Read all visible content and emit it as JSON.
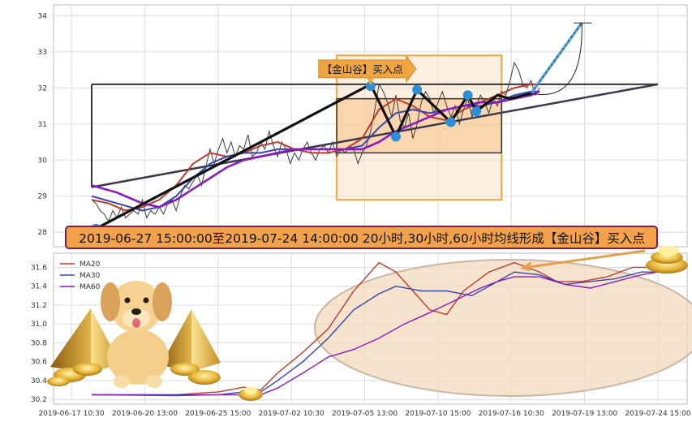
{
  "chart_data": [
    {
      "type": "line",
      "panel": "price",
      "ylim": [
        27.6,
        34.3
      ],
      "yticks": [
        "28",
        "29",
        "30",
        "31",
        "32",
        "33",
        "34"
      ],
      "grid": true,
      "price_series": [
        [
          0,
          28.9
        ],
        [
          1,
          28.8
        ],
        [
          2,
          28.6
        ],
        [
          3,
          28.5
        ],
        [
          4,
          28.3
        ],
        [
          5,
          28.6
        ],
        [
          6,
          28.4
        ],
        [
          7,
          28.7
        ],
        [
          8,
          28.4
        ],
        [
          9,
          28.5
        ],
        [
          10,
          28.6
        ],
        [
          11,
          28.5
        ],
        [
          12,
          28.9
        ],
        [
          13,
          28.4
        ],
        [
          14,
          28.6
        ],
        [
          15,
          28.5
        ],
        [
          16,
          28.7
        ],
        [
          17,
          28.5
        ],
        [
          18,
          28.8
        ],
        [
          19,
          28.9
        ],
        [
          20,
          28.6
        ],
        [
          21,
          29.0
        ],
        [
          22,
          29.3
        ],
        [
          23,
          29.2
        ],
        [
          24,
          29.4
        ],
        [
          25,
          29.6
        ],
        [
          26,
          29.3
        ],
        [
          27,
          29.8
        ],
        [
          28,
          30.3
        ],
        [
          29,
          29.9
        ],
        [
          30,
          30.3
        ],
        [
          31,
          30.6
        ],
        [
          32,
          30.2
        ],
        [
          33,
          30.5
        ],
        [
          34,
          30.1
        ],
        [
          35,
          30.4
        ],
        [
          36,
          30.3
        ],
        [
          37,
          30.7
        ],
        [
          38,
          30.1
        ],
        [
          39,
          30.2
        ],
        [
          40,
          30.5
        ],
        [
          41,
          30.3
        ],
        [
          42,
          30.8
        ],
        [
          43,
          30.4
        ],
        [
          44,
          30.1
        ],
        [
          45,
          30.5
        ],
        [
          46,
          30.3
        ],
        [
          47,
          29.9
        ],
        [
          48,
          30.2
        ],
        [
          49,
          30.0
        ],
        [
          50,
          30.3
        ],
        [
          51,
          30.5
        ],
        [
          52,
          30.2
        ],
        [
          53,
          30.0
        ],
        [
          54,
          30.3
        ],
        [
          55,
          30.4
        ],
        [
          56,
          30.2
        ],
        [
          57,
          30.5
        ],
        [
          58,
          30.1
        ],
        [
          59,
          30.3
        ],
        [
          60,
          30.2
        ],
        [
          61,
          30.4
        ],
        [
          62,
          30.3
        ],
        [
          63,
          29.9
        ],
        [
          64,
          30.2
        ],
        [
          65,
          30.4
        ],
        [
          66,
          30.8
        ],
        [
          67,
          31.4
        ],
        [
          68,
          32.1
        ],
        [
          69,
          31.9
        ],
        [
          70,
          31.6
        ],
        [
          71,
          31.2
        ],
        [
          72,
          31.8
        ],
        [
          73,
          31.1
        ],
        [
          74,
          30.9
        ],
        [
          75,
          31.3
        ],
        [
          76,
          30.6
        ],
        [
          77,
          31.0
        ],
        [
          78,
          31.6
        ],
        [
          79,
          31.9
        ],
        [
          80,
          31.7
        ],
        [
          81,
          31.3
        ],
        [
          82,
          31.6
        ],
        [
          83,
          31.9
        ],
        [
          84,
          31.5
        ],
        [
          85,
          31.2
        ],
        [
          86,
          31.5
        ],
        [
          87,
          31.0
        ],
        [
          88,
          31.4
        ],
        [
          89,
          31.7
        ],
        [
          90,
          31.2
        ],
        [
          91,
          31.5
        ],
        [
          92,
          31.8
        ],
        [
          93,
          31.6
        ],
        [
          94,
          31.3
        ],
        [
          95,
          31.7
        ],
        [
          96,
          31.5
        ],
        [
          97,
          31.9
        ],
        [
          98,
          31.8
        ],
        [
          99,
          32.2
        ],
        [
          100,
          32.7
        ],
        [
          101,
          32.5
        ],
        [
          102,
          32.1
        ],
        [
          103,
          32.0
        ],
        [
          104,
          32.2
        ],
        [
          105,
          31.8
        ],
        [
          106,
          32.0
        ]
      ],
      "series": [
        {
          "name": "MA20",
          "color": "#c0392b",
          "values": [
            [
              0,
              28.9
            ],
            [
              4,
              28.8
            ],
            [
              8,
              28.6
            ],
            [
              12,
              28.7
            ],
            [
              16,
              28.9
            ],
            [
              20,
              29.3
            ],
            [
              24,
              29.9
            ],
            [
              28,
              30.2
            ],
            [
              32,
              30.1
            ],
            [
              36,
              30.2
            ],
            [
              40,
              30.4
            ],
            [
              44,
              30.5
            ],
            [
              48,
              30.3
            ],
            [
              52,
              30.2
            ],
            [
              56,
              30.2
            ],
            [
              60,
              30.3
            ],
            [
              64,
              30.6
            ],
            [
              68,
              31.4
            ],
            [
              72,
              31.7
            ],
            [
              76,
              31.5
            ],
            [
              80,
              31.2
            ],
            [
              84,
              31.1
            ],
            [
              88,
              31.4
            ],
            [
              92,
              31.6
            ],
            [
              96,
              31.8
            ],
            [
              100,
              32.0
            ],
            [
              104,
              32.1
            ],
            [
              106,
              32.1
            ]
          ]
        },
        {
          "name": "MA30",
          "color": "#3446b0",
          "values": [
            [
              0,
              29.0
            ],
            [
              6,
              28.8
            ],
            [
              12,
              28.6
            ],
            [
              16,
              28.7
            ],
            [
              20,
              29.0
            ],
            [
              24,
              29.5
            ],
            [
              28,
              29.9
            ],
            [
              32,
              30.1
            ],
            [
              36,
              30.2
            ],
            [
              40,
              30.2
            ],
            [
              44,
              30.3
            ],
            [
              48,
              30.3
            ],
            [
              52,
              30.3
            ],
            [
              56,
              30.3
            ],
            [
              60,
              30.3
            ],
            [
              64,
              30.4
            ],
            [
              68,
              30.9
            ],
            [
              72,
              31.3
            ],
            [
              76,
              31.4
            ],
            [
              80,
              31.3
            ],
            [
              84,
              31.4
            ],
            [
              88,
              31.5
            ],
            [
              92,
              31.5
            ],
            [
              96,
              31.6
            ],
            [
              100,
              31.8
            ],
            [
              104,
              31.9
            ],
            [
              106,
              31.9
            ]
          ]
        },
        {
          "name": "MA60",
          "color": "#8a1ac2",
          "values": [
            [
              0,
              29.3
            ],
            [
              6,
              29.1
            ],
            [
              12,
              28.8
            ],
            [
              16,
              28.7
            ],
            [
              20,
              28.9
            ],
            [
              24,
              29.2
            ],
            [
              28,
              29.5
            ],
            [
              32,
              29.8
            ],
            [
              36,
              30.0
            ],
            [
              40,
              30.1
            ],
            [
              44,
              30.2
            ],
            [
              48,
              30.3
            ],
            [
              52,
              30.3
            ],
            [
              56,
              30.3
            ],
            [
              60,
              30.3
            ],
            [
              64,
              30.3
            ],
            [
              68,
              30.5
            ],
            [
              72,
              30.8
            ],
            [
              76,
              31.0
            ],
            [
              80,
              31.2
            ],
            [
              84,
              31.4
            ],
            [
              88,
              31.5
            ],
            [
              92,
              31.6
            ],
            [
              96,
              31.6
            ],
            [
              100,
              31.7
            ],
            [
              104,
              31.8
            ],
            [
              106,
              31.9
            ]
          ]
        }
      ],
      "zigzag": [
        [
          1,
          28.1
        ],
        [
          66,
          32.1
        ],
        [
          72,
          30.65
        ],
        [
          77,
          31.95
        ],
        [
          85,
          31.05
        ],
        [
          89,
          31.8
        ],
        [
          91,
          31.35
        ],
        [
          96,
          31.8
        ],
        [
          99,
          31.7
        ],
        [
          104,
          31.85
        ]
      ],
      "pivot_points": [
        [
          1,
          28.1
        ],
        [
          66,
          32.05
        ],
        [
          72,
          30.65
        ],
        [
          77,
          31.95
        ],
        [
          85,
          31.05
        ],
        [
          89,
          31.8
        ],
        [
          91,
          31.35
        ]
      ],
      "forecast": [
        [
          104,
          31.85
        ],
        [
          116,
          33.8
        ]
      ],
      "forecast_end_value": 33.8,
      "resistance_line": [
        [
          0,
          32.1
        ],
        [
          134,
          32.1
        ]
      ],
      "support_line": [
        [
          0,
          29.25
        ],
        [
          134,
          32.1
        ]
      ],
      "buy_marker": {
        "x": 66,
        "y": 32.1,
        "label": "【金山谷】买入点"
      },
      "banner": "2019-06-27 15:00:00至2019-07-24 14:00:00 20小时,30小时,60小时均线形成【金山谷】买入点"
    },
    {
      "type": "line",
      "panel": "moving-averages",
      "ylim": [
        30.15,
        31.75
      ],
      "yticks": [
        "30.2",
        "30.4",
        "30.6",
        "30.8",
        "31.0",
        "31.2",
        "31.4",
        "31.6"
      ],
      "grid": true,
      "legend_position": "top-left",
      "categories": [
        "2019-06-17 10:30",
        "2019-06-20 13:00",
        "2019-06-25 15:00",
        "2019-07-02 10:30",
        "2019-07-05 13:00",
        "2019-07-10 15:00",
        "2019-07-16 10:30",
        "2019-07-19 13:00",
        "2019-07-24 15:00"
      ],
      "series": [
        {
          "name": "MA20",
          "color": "#c0392b",
          "values": [
            [
              0,
              30.25
            ],
            [
              20,
              30.25
            ],
            [
              30,
              30.28
            ],
            [
              36,
              30.33
            ],
            [
              40,
              30.3
            ],
            [
              44,
              30.48
            ],
            [
              50,
              30.7
            ],
            [
              56,
              30.95
            ],
            [
              62,
              31.35
            ],
            [
              68,
              31.65
            ],
            [
              72,
              31.55
            ],
            [
              76,
              31.35
            ],
            [
              80,
              31.15
            ],
            [
              84,
              31.1
            ],
            [
              88,
              31.35
            ],
            [
              94,
              31.55
            ],
            [
              100,
              31.65
            ],
            [
              106,
              31.55
            ],
            [
              110,
              31.45
            ],
            [
              116,
              31.45
            ],
            [
              122,
              31.5
            ],
            [
              128,
              31.6
            ],
            [
              134,
              31.6
            ]
          ]
        },
        {
          "name": "MA30",
          "color": "#3446b0",
          "values": [
            [
              0,
              30.25
            ],
            [
              20,
              30.25
            ],
            [
              30,
              30.25
            ],
            [
              36,
              30.28
            ],
            [
              40,
              30.28
            ],
            [
              44,
              30.4
            ],
            [
              50,
              30.6
            ],
            [
              56,
              30.85
            ],
            [
              62,
              31.15
            ],
            [
              68,
              31.32
            ],
            [
              72,
              31.4
            ],
            [
              78,
              31.35
            ],
            [
              84,
              31.35
            ],
            [
              90,
              31.3
            ],
            [
              96,
              31.45
            ],
            [
              100,
              31.55
            ],
            [
              106,
              31.52
            ],
            [
              112,
              31.42
            ],
            [
              118,
              31.45
            ],
            [
              124,
              31.48
            ],
            [
              130,
              31.55
            ],
            [
              134,
              31.55
            ]
          ]
        },
        {
          "name": "MA60",
          "color": "#8a1ac2",
          "values": [
            [
              0,
              30.25
            ],
            [
              20,
              30.24
            ],
            [
              30,
              30.25
            ],
            [
              36,
              30.25
            ],
            [
              40,
              30.25
            ],
            [
              44,
              30.32
            ],
            [
              50,
              30.48
            ],
            [
              56,
              30.65
            ],
            [
              62,
              30.73
            ],
            [
              68,
              30.85
            ],
            [
              74,
              31.0
            ],
            [
              80,
              31.12
            ],
            [
              86,
              31.25
            ],
            [
              92,
              31.38
            ],
            [
              96,
              31.45
            ],
            [
              100,
              31.5
            ],
            [
              106,
              31.5
            ],
            [
              112,
              31.42
            ],
            [
              118,
              31.38
            ],
            [
              124,
              31.45
            ],
            [
              130,
              31.52
            ],
            [
              134,
              31.55
            ]
          ]
        }
      ]
    }
  ]
}
